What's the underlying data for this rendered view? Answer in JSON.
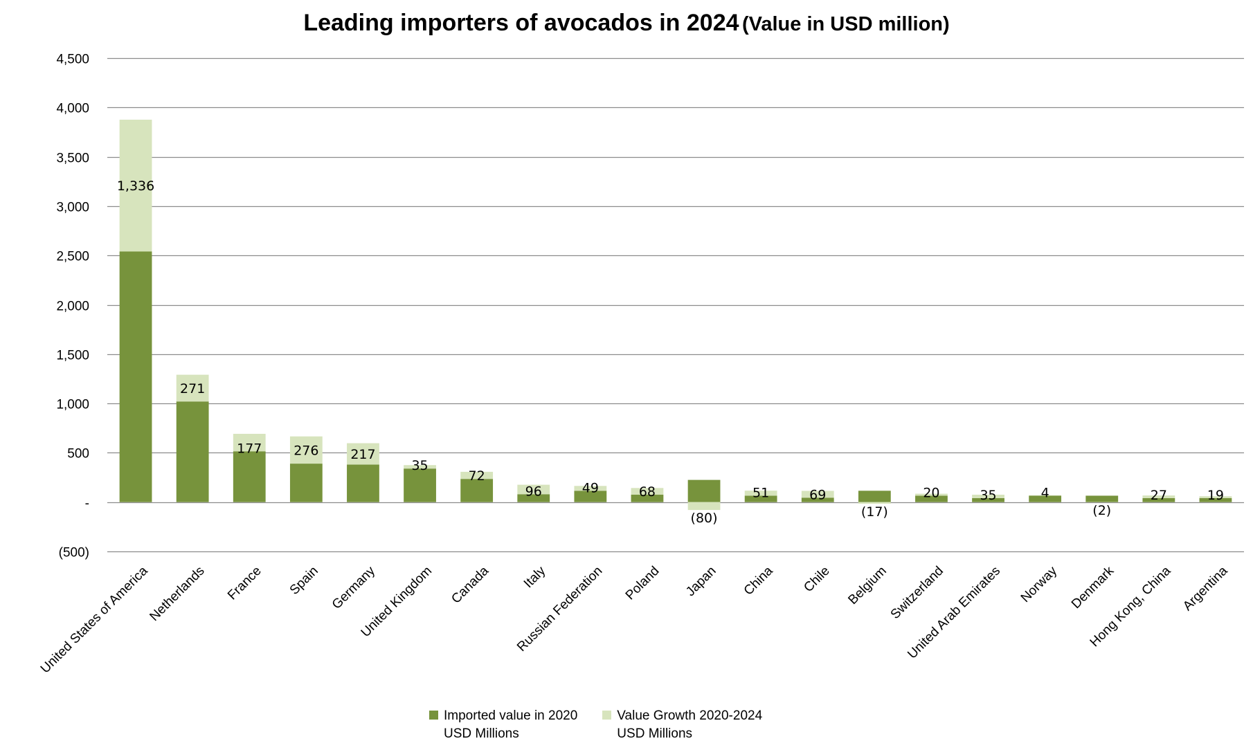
{
  "chart_data": {
    "type": "bar",
    "stacked": true,
    "title": "Leading importers  of avocados  in  2024",
    "subtitle": "(Value in USD million)",
    "xlabel": "",
    "ylabel": "",
    "ylim": [
      -500,
      4500
    ],
    "yticks": [
      -500,
      0,
      500,
      1000,
      1500,
      2000,
      2500,
      3000,
      3500,
      4000,
      4500
    ],
    "ytick_labels": [
      "(500)",
      "-",
      "500",
      "1,000",
      "1,500",
      "2,000",
      "2,500",
      "3,000",
      "3,500",
      "4,000",
      "4,500"
    ],
    "grid": true,
    "legend_position": "bottom",
    "categories": [
      "United States of America",
      "Netherlands",
      "France",
      "Spain",
      "Germany",
      "United Kingdom",
      "Canada",
      "Italy",
      "Russian Federation",
      "Poland",
      "Japan",
      "China",
      "Chile",
      "Belgium",
      "Switzerland",
      "United Arab Emirates",
      "Norway",
      "Denmark",
      "Hong Kong, China",
      "Argentina"
    ],
    "series": [
      {
        "name": "Imported value in 2020 USD Millions",
        "legend_lines": [
          "Imported value in 2020",
          "USD Millions"
        ],
        "color": "#77933c",
        "values": [
          2540,
          1020,
          515,
          390,
          380,
          340,
          235,
          80,
          115,
          75,
          225,
          65,
          45,
          115,
          65,
          40,
          65,
          65,
          40,
          40
        ]
      },
      {
        "name": "Value Growth 2020-2024 USD Millions",
        "legend_lines": [
          "Value Growth 2020-2024",
          "USD Millions"
        ],
        "color": "#d7e4bd",
        "values": [
          1336,
          271,
          177,
          276,
          217,
          35,
          72,
          96,
          49,
          68,
          -80,
          51,
          69,
          -17,
          20,
          35,
          4,
          -2,
          27,
          19
        ]
      }
    ],
    "data_labels": [
      "1,336",
      "271",
      "177",
      "276",
      "217",
      "35",
      "72",
      "96",
      "49",
      "68",
      "(80)",
      "51",
      "69",
      "(17)",
      "20",
      "35",
      "4",
      "(2)",
      "27",
      "19"
    ]
  }
}
